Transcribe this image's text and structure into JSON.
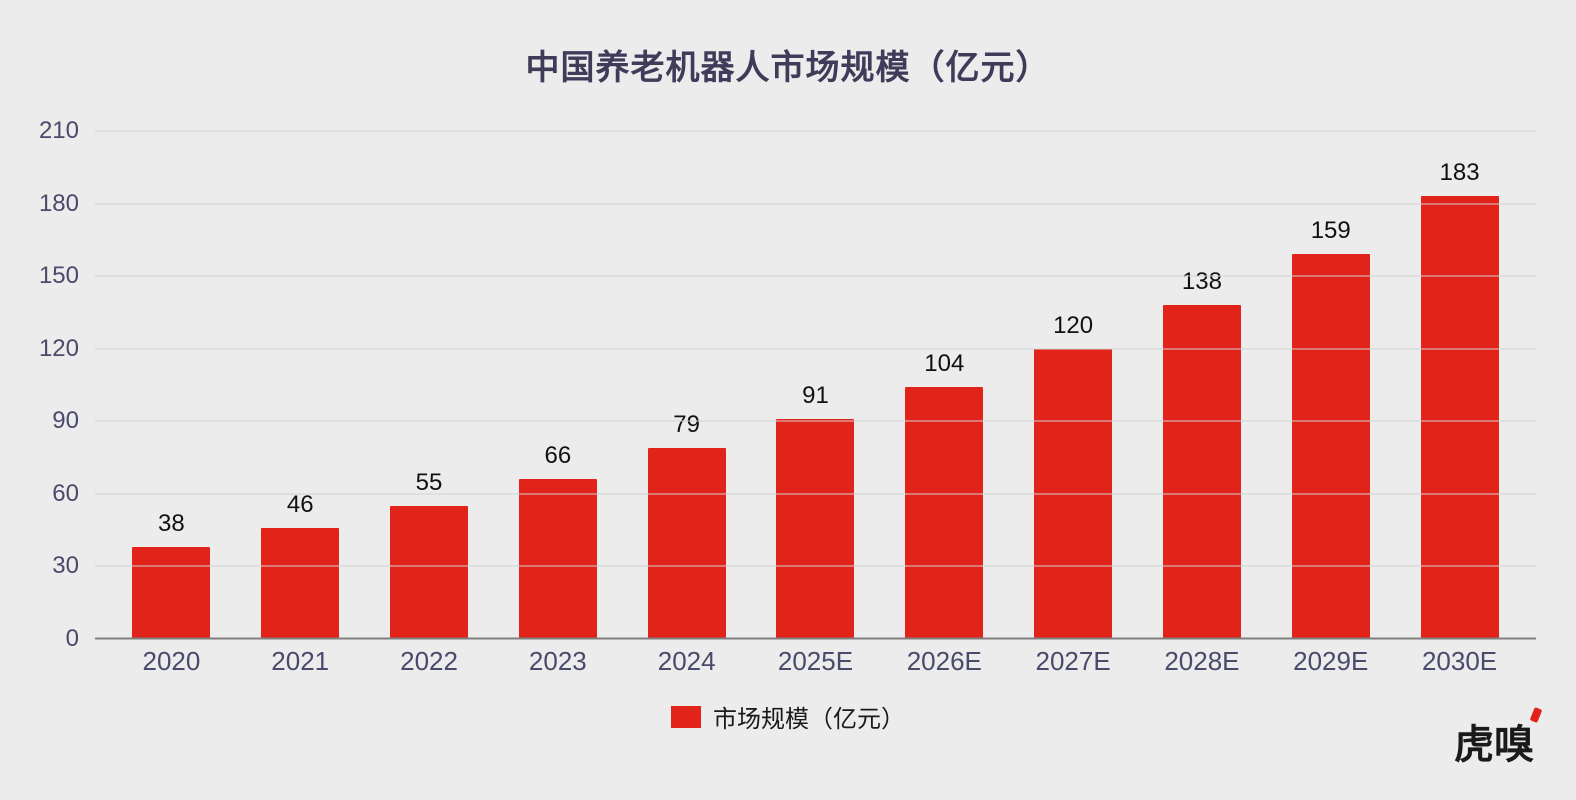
{
  "chart_data": {
    "type": "bar",
    "title": "中国养老机器人市场规模（亿元）",
    "categories": [
      "2020",
      "2021",
      "2022",
      "2023",
      "2024",
      "2025E",
      "2026E",
      "2027E",
      "2028E",
      "2029E",
      "2030E"
    ],
    "values": [
      38,
      46,
      55,
      66,
      79,
      91,
      104,
      120,
      138,
      159,
      183
    ],
    "ylim": [
      0,
      210
    ],
    "yticks": [
      0,
      30,
      60,
      90,
      120,
      150,
      180,
      210
    ],
    "grid": true,
    "bar_color": "#e2231a",
    "legend": "市场规模（亿元）",
    "legend_position": "bottom"
  },
  "logo": {
    "text": "虎嗅"
  }
}
